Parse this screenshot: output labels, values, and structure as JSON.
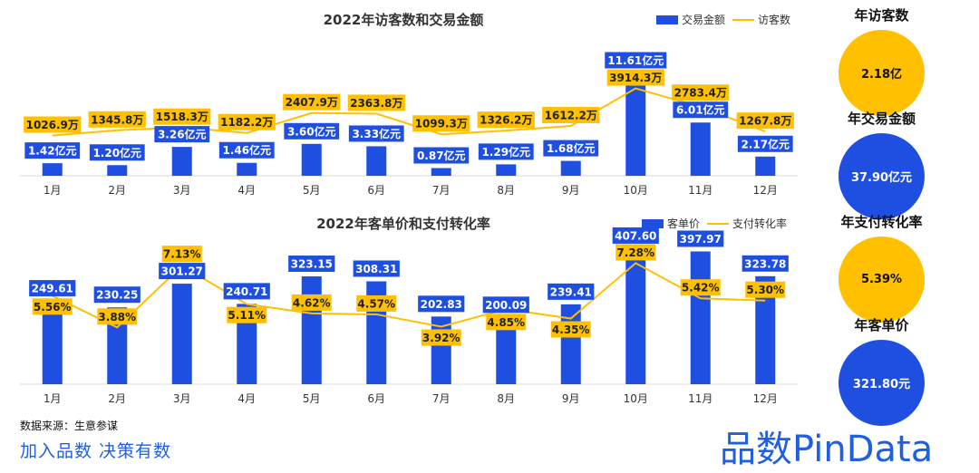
{
  "colors": {
    "bar": "#1f4fe0",
    "line": "#ffc000",
    "label_text": "#ffffff",
    "line_label_text": "#222222"
  },
  "chart_data": [
    {
      "type": "bar",
      "title": "2022年访客数和交易金额",
      "categories": [
        "1月",
        "2月",
        "3月",
        "4月",
        "5月",
        "6月",
        "7月",
        "8月",
        "9月",
        "10月",
        "11月",
        "12月"
      ],
      "series": [
        {
          "name": "交易金额",
          "kind": "bar",
          "values": [
            1.42,
            1.2,
            3.26,
            1.46,
            3.6,
            3.33,
            0.87,
            1.29,
            1.68,
            11.61,
            6.01,
            2.17
          ],
          "labels": [
            "1.42亿元",
            "1.20亿元",
            "3.26亿元",
            "1.46亿元",
            "3.60亿元",
            "3.33亿元",
            "0.87亿元",
            "1.29亿元",
            "1.68亿元",
            "11.61亿元",
            "6.01亿元",
            "2.17亿元"
          ]
        },
        {
          "name": "访客数",
          "kind": "line",
          "values": [
            1026.9,
            1345.8,
            1518.3,
            1182.2,
            2407.9,
            2363.8,
            1099.3,
            1326.2,
            1612.2,
            3914.3,
            2783.4,
            1267.8
          ],
          "labels": [
            "1026.9万",
            "1345.8万",
            "1518.3万",
            "1182.2万",
            "2407.9万",
            "2363.8万",
            "1099.3万",
            "1326.2万",
            "1612.2万",
            "3914.3万",
            "2783.4万",
            "1267.8万"
          ]
        }
      ]
    },
    {
      "type": "bar",
      "title": "2022年客单价和支付转化率",
      "categories": [
        "1月",
        "2月",
        "3月",
        "4月",
        "5月",
        "6月",
        "7月",
        "8月",
        "9月",
        "10月",
        "11月",
        "12月"
      ],
      "series": [
        {
          "name": "客单价",
          "kind": "bar",
          "values": [
            249.61,
            230.25,
            301.27,
            240.71,
            323.15,
            308.31,
            202.83,
            200.09,
            239.41,
            407.6,
            397.97,
            323.78
          ],
          "labels": [
            "249.61",
            "230.25",
            "301.27",
            "240.71",
            "323.15",
            "308.31",
            "202.83",
            "200.09",
            "239.41",
            "407.60",
            "397.97",
            "323.78"
          ]
        },
        {
          "name": "支付转化率",
          "kind": "line",
          "values": [
            5.56,
            3.88,
            7.13,
            5.11,
            4.62,
            4.57,
            3.92,
            4.85,
            4.35,
            7.28,
            5.42,
            5.3
          ],
          "labels": [
            "5.56%",
            "3.88%",
            "7.13%",
            "5.11%",
            "4.62%",
            "4.57%",
            "3.92%",
            "4.85%",
            "4.35%",
            "7.28%",
            "5.42%",
            "5.30%"
          ]
        }
      ]
    }
  ],
  "stats": [
    {
      "label": "年访客数",
      "value": "2.18亿",
      "color": "#ffc000",
      "text_color": "#111111"
    },
    {
      "label": "年交易金额",
      "value": "37.90亿元",
      "color": "#1f4fe0",
      "text_color": "#ffffff"
    },
    {
      "label": "年支付转化率",
      "value": "5.39%",
      "color": "#ffc000",
      "text_color": "#111111"
    },
    {
      "label": "年客单价",
      "value": "321.80元",
      "color": "#1f4fe0",
      "text_color": "#ffffff"
    }
  ],
  "footer": {
    "source": "数据来源：生意参谋",
    "slogan": "加入品数 决策有数"
  },
  "brand": "品数PinData"
}
